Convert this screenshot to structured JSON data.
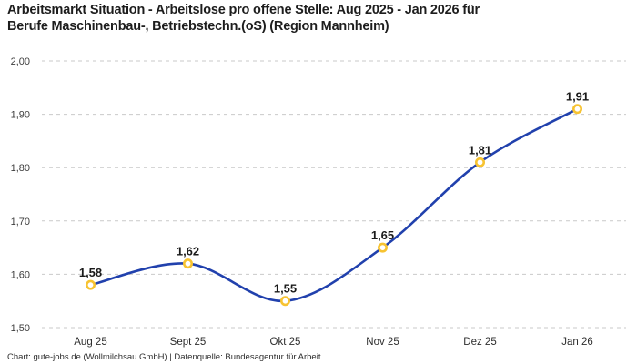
{
  "title": {
    "line1": "Arbeitsmarkt Situation - Arbeitslose pro offene Stelle: Aug 2025 - Jan 2026 für",
    "line2": "Berufe Maschinenbau-, Betriebstechn.(oS) (Region Mannheim)"
  },
  "footer": {
    "text": "Chart: gute-jobs.de (Wollmilchsau GmbH) | Datenquelle: Bundesagentur für Arbeit"
  },
  "colors": {
    "line": "#2141ad",
    "marker_ring": "#f7c331",
    "marker_fill": "#ffffff",
    "grid": "#c9c9c9",
    "value_label": "#1a1a1a",
    "tick_label": "#3c3c3c",
    "x_label": "#2e2e2e"
  },
  "chart_data": {
    "type": "line",
    "title": "Arbeitsmarkt Situation - Arbeitslose pro offene Stelle: Aug 2025 - Jan 2026 für Berufe Maschinenbau-, Betriebstechn.(oS) (Region Mannheim)",
    "source": "Chart: gute-jobs.de (Wollmilchsau GmbH) | Datenquelle: Bundesagentur für Arbeit",
    "categories": [
      "Aug 25",
      "Sept 25",
      "Okt 25",
      "Nov 25",
      "Dez 25",
      "Jan 26"
    ],
    "values": [
      1.58,
      1.62,
      1.55,
      1.65,
      1.81,
      1.91
    ],
    "value_labels": [
      "1,58",
      "1,62",
      "1,55",
      "1,65",
      "1,81",
      "1,91"
    ],
    "y_ticks": [
      2.0,
      1.9,
      1.8,
      1.7,
      1.6,
      1.5
    ],
    "y_tick_labels": [
      "2,00",
      "1,90",
      "1,80",
      "1,70",
      "1,60",
      "1,50"
    ],
    "ylim": [
      1.5,
      2.0
    ],
    "xlabel": "",
    "ylabel": "",
    "grid": "horizontal-dashed",
    "legend": "none",
    "smooth": true
  }
}
